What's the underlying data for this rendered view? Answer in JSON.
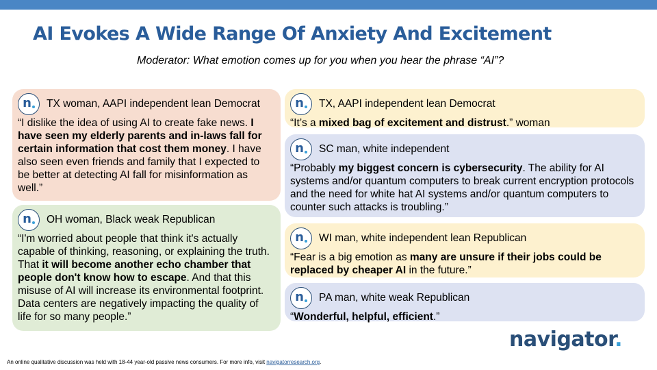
{
  "slide": {
    "title": "AI Evokes A Wide Range Of Anxiety And Excitement",
    "subtitle": "Moderator: What emotion comes up for you when you hear the phrase “AI”?"
  },
  "brand": {
    "badge_letter": "n",
    "logo_text": "navigator",
    "logo_dot": ".",
    "colors": {
      "top_bar": "#4a86c5",
      "title": "#2a5d9a",
      "logo": "#2a4f78",
      "accent_dot": "#3aa0d8"
    }
  },
  "cards": [
    {
      "speaker": "TX woman, AAPI independent lean Democrat",
      "color": "#f7ddd0",
      "q": [
        {
          "text": "“I dislike the idea of using AI to create fake news. "
        },
        {
          "text": "I have seen my elderly parents and in-laws fall for certain information that cost them money",
          "bold": true
        },
        {
          "text": ". I have also seen even friends and family that I expected to be better at detecting AI fall for misinformation as well.”"
        }
      ]
    },
    {
      "speaker": "OH woman, Black weak Republican",
      "color": "#e0ecd6",
      "q": [
        {
          "text": "“I'm worried about people that think it's actually capable of thinking, reasoning, or explaining the truth. That "
        },
        {
          "text": "it will become another echo chamber that people don't know how to escape",
          "bold": true
        },
        {
          "text": ". And that this misuse of AI will increase its environmental footprint. Data centers are negatively impacting the quality of life for so many people.”"
        }
      ]
    },
    {
      "speaker": "TX, AAPI independent lean Democrat",
      "color": "#fdf1cf",
      "q": [
        {
          "text": "“It’s a "
        },
        {
          "text": "mixed bag of excitement and distrust",
          "bold": true
        },
        {
          "text": ".” woman"
        }
      ]
    },
    {
      "speaker": "SC man, white independent",
      "color": "#dde2f2",
      "q": [
        {
          "text": "“Probably "
        },
        {
          "text": "my biggest concern is cybersecurity",
          "bold": true
        },
        {
          "text": ". The ability for AI systems and/or quantum computers to break current encryption protocols and the need for white hat AI systems and/or quantum computers to counter such attacks is troubling.”"
        }
      ]
    },
    {
      "speaker": "WI man, white independent lean Republican",
      "color": "#fdf1cf",
      "q": [
        {
          "text": "“Fear is a big emotion as "
        },
        {
          "text": "many are unsure if their jobs could be replaced by cheaper AI",
          "bold": true
        },
        {
          "text": " in the future.”"
        }
      ]
    },
    {
      "speaker": "PA man, white weak Republican",
      "color": "#dde2f2",
      "q": [
        {
          "text": "“"
        },
        {
          "text": "Wonderful, helpful, efficient",
          "bold": true
        },
        {
          "text": ".”"
        }
      ]
    }
  ],
  "footer": {
    "text": "An online qualitative discussion was held with 18-44 year-old passive news consumers. For more info, visit ",
    "link": "navigatorresearch.org",
    "end": "."
  }
}
